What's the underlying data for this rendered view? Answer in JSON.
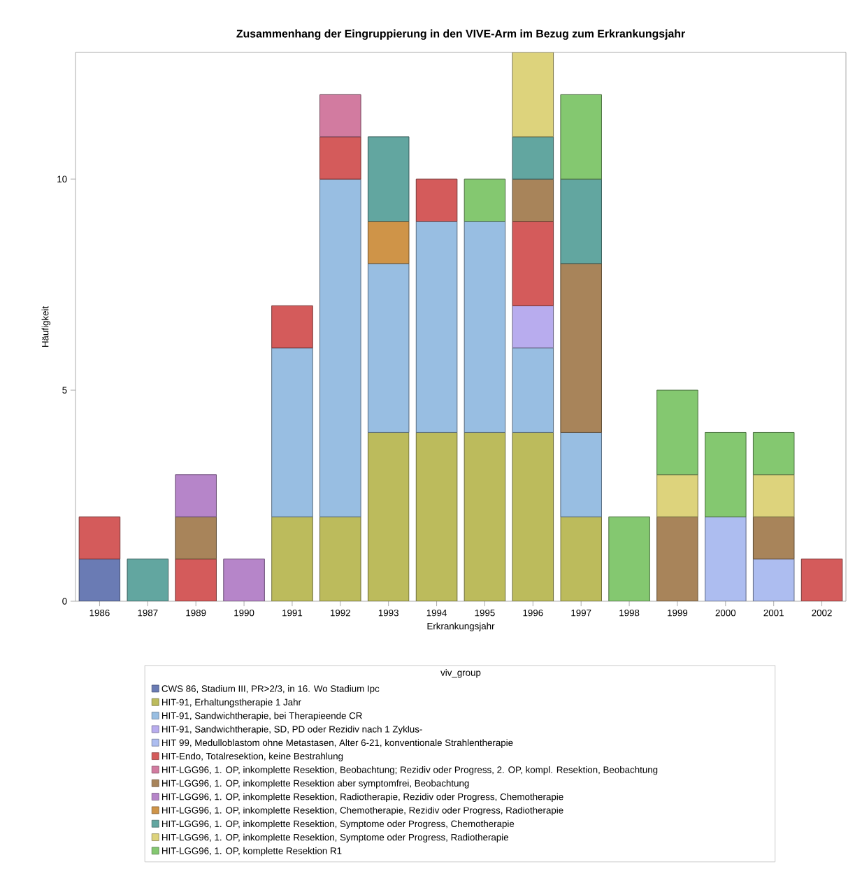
{
  "chart_data": {
    "type": "bar",
    "stacked": true,
    "title": "Zusammenhang der Eingruppierung in den VIVE-Arm im Bezug zum Erkrankungsjahr",
    "xlabel": "Erkrankungsjahr",
    "ylabel": "Häufigkeit",
    "legend_title": "viv_group",
    "legend": "bottom",
    "categories": [
      "1986",
      "1987",
      "1989",
      "1990",
      "1991",
      "1992",
      "1993",
      "1994",
      "1995",
      "1996",
      "1997",
      "1998",
      "1999",
      "2000",
      "2001",
      "2002"
    ],
    "ylim": [
      0,
      13
    ],
    "yticks": [
      0,
      5,
      10
    ],
    "series": [
      {
        "name": "CWS 86, Stadium III, PR>2/3, in 16. Wo Stadium Ipc",
        "color": "#6a7bb4",
        "values": [
          1,
          null,
          null,
          null,
          null,
          null,
          null,
          null,
          null,
          null,
          null,
          null,
          null,
          null,
          null,
          null
        ]
      },
      {
        "name": "HIT-91, Erhaltungstherapie 1 Jahr",
        "color": "#bcbb5c",
        "values": [
          null,
          null,
          null,
          null,
          2,
          2,
          4,
          4,
          4,
          4,
          2,
          null,
          null,
          null,
          null,
          null
        ]
      },
      {
        "name": "HIT-91, Sandwichtherapie,  bei Therapieende CR",
        "color": "#98bee2",
        "values": [
          null,
          null,
          null,
          null,
          4,
          8,
          4,
          5,
          5,
          2,
          2,
          null,
          null,
          null,
          null,
          null
        ]
      },
      {
        "name": "HIT-91, Sandwichtherapie, SD, PD oder Rezidiv nach 1 Zyklus-",
        "color": "#b8acee",
        "values": [
          null,
          null,
          null,
          null,
          null,
          null,
          null,
          null,
          null,
          1,
          null,
          null,
          null,
          null,
          null,
          null
        ]
      },
      {
        "name": "HIT 99, Medulloblastom ohne Metastasen, Alter 6-21, konventionale Strahlentherapie",
        "color": "#adbdf0",
        "values": [
          null,
          null,
          null,
          null,
          null,
          null,
          null,
          null,
          null,
          null,
          null,
          null,
          null,
          2,
          1,
          null
        ]
      },
      {
        "name": "HIT-Endo, Totalresektion, keine Bestrahlung",
        "color": "#d45b5b",
        "values": [
          1,
          null,
          1,
          null,
          1,
          1,
          null,
          1,
          null,
          2,
          null,
          null,
          null,
          null,
          null,
          1
        ]
      },
      {
        "name": "HIT-LGG96, 1. OP, inkomplette Resektion, Beobachtung; Rezidiv oder Progress, 2. OP, kompl. Resektion, Beobachtung",
        "color": "#d27ba0",
        "values": [
          null,
          null,
          null,
          null,
          null,
          1,
          null,
          null,
          null,
          null,
          null,
          null,
          null,
          null,
          null,
          null
        ]
      },
      {
        "name": "HIT-LGG96, 1. OP, inkomplette Resektion aber symptomfrei, Beobachtung",
        "color": "#a8845a",
        "values": [
          null,
          null,
          1,
          null,
          null,
          null,
          null,
          null,
          null,
          1,
          4,
          null,
          2,
          null,
          1,
          null
        ]
      },
      {
        "name": "HIT-LGG96, 1. OP, inkomplette Resektion, Radiotherapie, Rezidiv oder Progress, Chemotherapie",
        "color": "#b685c9",
        "values": [
          null,
          null,
          1,
          1,
          null,
          null,
          null,
          null,
          null,
          null,
          null,
          null,
          null,
          null,
          null,
          null
        ]
      },
      {
        "name": "HIT-LGG96, 1. OP, inkomplette Resektion, Chemotherapie, Rezidiv oder Progress, Radiotherapie",
        "color": "#cf9448",
        "values": [
          null,
          null,
          null,
          null,
          null,
          null,
          1,
          null,
          null,
          null,
          null,
          null,
          null,
          null,
          null,
          null
        ]
      },
      {
        "name": "HIT-LGG96, 1. OP, inkomplette Resektion, Symptome oder Progress, Chemotherapie",
        "color": "#62a6a0",
        "values": [
          null,
          1,
          null,
          null,
          null,
          null,
          2,
          null,
          null,
          1,
          2,
          null,
          null,
          null,
          null,
          null
        ]
      },
      {
        "name": "HIT-LGG96, 1. OP, inkomplette Resektion, Symptome oder Progress, Radiotherapie",
        "color": "#ddd37c",
        "values": [
          null,
          null,
          null,
          null,
          null,
          null,
          null,
          null,
          null,
          2,
          null,
          null,
          1,
          null,
          1,
          null
        ]
      },
      {
        "name": "HIT-LGG96, 1. OP, komplette Resektion R1",
        "color": "#84c870",
        "values": [
          null,
          null,
          null,
          null,
          null,
          null,
          null,
          null,
          1,
          null,
          2,
          2,
          2,
          2,
          1,
          null
        ]
      }
    ]
  }
}
